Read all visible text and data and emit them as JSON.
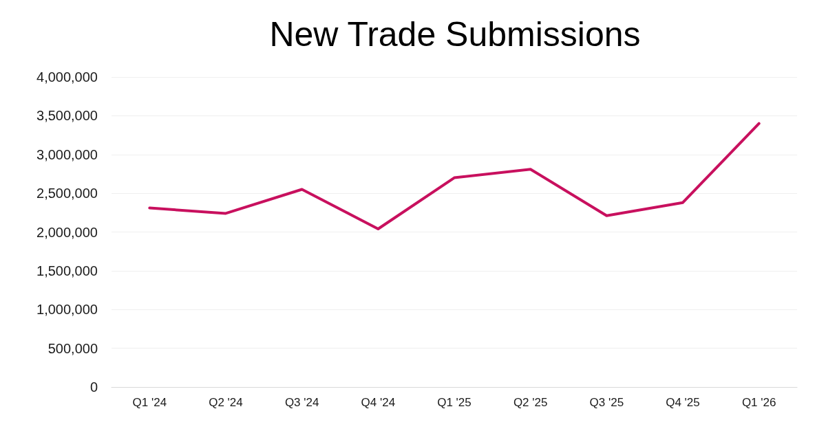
{
  "chart_data": {
    "type": "line",
    "title": "New Trade Submissions",
    "categories": [
      "Q1 '24",
      "Q2 '24",
      "Q3 '24",
      "Q4 '24",
      "Q1 '25",
      "Q2 '25",
      "Q3 '25",
      "Q4 '25",
      "Q1 '26"
    ],
    "series": [
      {
        "color": "#c8105e",
        "values": [
          2310000,
          2240000,
          2550000,
          2040000,
          2700000,
          2810000,
          2210000,
          2380000,
          3400000
        ]
      }
    ],
    "ylim": [
      0,
      4000000
    ],
    "yticks": [
      0,
      {
        "value": 500000,
        "label": "500,000"
      },
      {
        "value": 1000000,
        "label": "1,000,000"
      },
      {
        "value": 1500000,
        "label": "1,500,000"
      },
      {
        "value": 2000000,
        "label": "2,000,000"
      },
      {
        "value": 2500000,
        "label": "2,500,000"
      },
      {
        "value": 3000000,
        "label": "3,000,000"
      },
      {
        "value": 3500000,
        "label": "3,500,000"
      },
      {
        "value": 4000000,
        "label": "4,000,000"
      }
    ],
    "grid": "y",
    "marker": "none",
    "line_style": "solid"
  }
}
